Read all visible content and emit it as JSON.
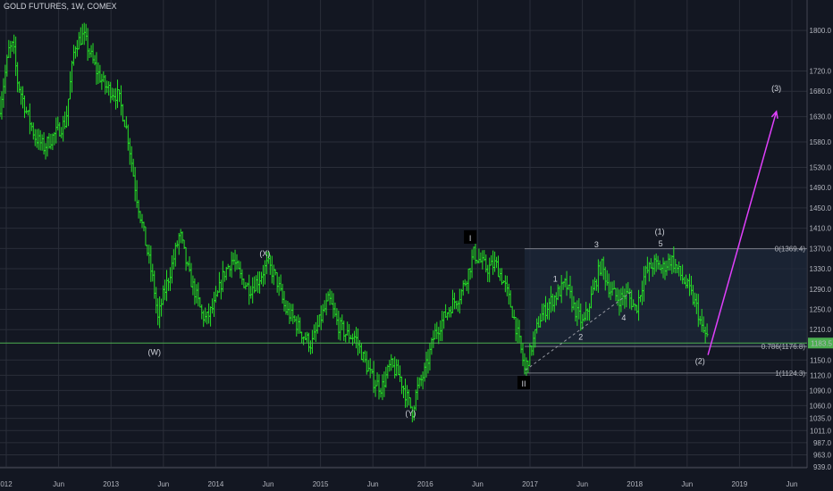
{
  "chart_data": {
    "type": "ohlc",
    "title": "GOLD FUTURES, 1W, COMEX",
    "ylim": [
      937.5,
      1860
    ],
    "y_ticks": [
      1880.0,
      1800.0,
      1720.0,
      1680.0,
      1630.0,
      1580.0,
      1530.0,
      1490.0,
      1450.0,
      1410.0,
      1370.0,
      1330.0,
      1290.0,
      1250.0,
      1210.0,
      1150.0,
      1120.0,
      1090.0,
      1060.0,
      1035.0,
      1011.0,
      987.0,
      963.0,
      939.0
    ],
    "x_ticks": [
      "012",
      "Jun",
      "2013",
      "Jun",
      "2014",
      "Jun",
      "2015",
      "Jun",
      "2016",
      "Jun",
      "2017",
      "Jun",
      "2018",
      "Jun",
      "2019",
      "Jun"
    ],
    "price_series": [
      {
        "t": 0.0,
        "v": 1650
      },
      {
        "t": 1.0,
        "v": 1760
      },
      {
        "t": 1.5,
        "v": 1770
      },
      {
        "t": 2.0,
        "v": 1700
      },
      {
        "t": 3.0,
        "v": 1640
      },
      {
        "t": 4.0,
        "v": 1590
      },
      {
        "t": 5.0,
        "v": 1570
      },
      {
        "t": 6.5,
        "v": 1600
      },
      {
        "t": 7.5,
        "v": 1620
      },
      {
        "t": 8.5,
        "v": 1770
      },
      {
        "t": 9.5,
        "v": 1790
      },
      {
        "t": 11.0,
        "v": 1720
      },
      {
        "t": 12.0,
        "v": 1690
      },
      {
        "t": 13.5,
        "v": 1670
      },
      {
        "t": 14.5,
        "v": 1600
      },
      {
        "t": 15.5,
        "v": 1480
      },
      {
        "t": 16.5,
        "v": 1390
      },
      {
        "t": 17.5,
        "v": 1300
      },
      {
        "t": 18.0,
        "v": 1230
      },
      {
        "t": 18.5,
        "v": 1270
      },
      {
        "t": 19.5,
        "v": 1330
      },
      {
        "t": 20.5,
        "v": 1400
      },
      {
        "t": 21.5,
        "v": 1320
      },
      {
        "t": 22.5,
        "v": 1270
      },
      {
        "t": 23.0,
        "v": 1240
      },
      {
        "t": 23.5,
        "v": 1230
      },
      {
        "t": 24.5,
        "v": 1260
      },
      {
        "t": 25.5,
        "v": 1320
      },
      {
        "t": 26.5,
        "v": 1350
      },
      {
        "t": 27.5,
        "v": 1310
      },
      {
        "t": 28.5,
        "v": 1290
      },
      {
        "t": 29.5,
        "v": 1310
      },
      {
        "t": 30.5,
        "v": 1340
      },
      {
        "t": 31.5,
        "v": 1310
      },
      {
        "t": 32.5,
        "v": 1250
      },
      {
        "t": 33.5,
        "v": 1230
      },
      {
        "t": 34.5,
        "v": 1200
      },
      {
        "t": 35.5,
        "v": 1180
      },
      {
        "t": 36.5,
        "v": 1230
      },
      {
        "t": 37.5,
        "v": 1270
      },
      {
        "t": 38.5,
        "v": 1220
      },
      {
        "t": 39.5,
        "v": 1200
      },
      {
        "t": 40.5,
        "v": 1195
      },
      {
        "t": 41.5,
        "v": 1150
      },
      {
        "t": 42.5,
        "v": 1110
      },
      {
        "t": 43.5,
        "v": 1095
      },
      {
        "t": 44.5,
        "v": 1140
      },
      {
        "t": 45.5,
        "v": 1120
      },
      {
        "t": 46.5,
        "v": 1070
      },
      {
        "t": 47.0,
        "v": 1050
      },
      {
        "t": 47.5,
        "v": 1090
      },
      {
        "t": 48.5,
        "v": 1130
      },
      {
        "t": 49.5,
        "v": 1200
      },
      {
        "t": 50.5,
        "v": 1230
      },
      {
        "t": 51.5,
        "v": 1260
      },
      {
        "t": 52.5,
        "v": 1280
      },
      {
        "t": 53.5,
        "v": 1330
      },
      {
        "t": 54.0,
        "v": 1360
      },
      {
        "t": 54.5,
        "v": 1350
      },
      {
        "t": 55.5,
        "v": 1330
      },
      {
        "t": 56.5,
        "v": 1340
      },
      {
        "t": 57.5,
        "v": 1300
      },
      {
        "t": 58.5,
        "v": 1240
      },
      {
        "t": 59.5,
        "v": 1160
      },
      {
        "t": 59.8,
        "v": 1130
      },
      {
        "t": 60.5,
        "v": 1170
      },
      {
        "t": 61.5,
        "v": 1230
      },
      {
        "t": 62.5,
        "v": 1260
      },
      {
        "t": 63.5,
        "v": 1280
      },
      {
        "t": 64.5,
        "v": 1300
      },
      {
        "t": 65.5,
        "v": 1250
      },
      {
        "t": 66.5,
        "v": 1220
      },
      {
        "t": 67.5,
        "v": 1280
      },
      {
        "t": 68.5,
        "v": 1340
      },
      {
        "t": 69.5,
        "v": 1290
      },
      {
        "t": 70.5,
        "v": 1270
      },
      {
        "t": 71.5,
        "v": 1280
      },
      {
        "t": 72.5,
        "v": 1250
      },
      {
        "t": 73.5,
        "v": 1320
      },
      {
        "t": 74.5,
        "v": 1340
      },
      {
        "t": 75.5,
        "v": 1330
      },
      {
        "t": 76.5,
        "v": 1350
      },
      {
        "t": 77.5,
        "v": 1320
      },
      {
        "t": 78.5,
        "v": 1290
      },
      {
        "t": 79.5,
        "v": 1250
      },
      {
        "t": 80.0,
        "v": 1210
      },
      {
        "t": 80.6,
        "v": 1195
      }
    ],
    "annotations": [
      {
        "text": "(W)",
        "x": 17.6,
        "y": 1160,
        "color": "#d7b28c"
      },
      {
        "text": "(X)",
        "x": 30.2,
        "y": 1355,
        "color": "#d7b28c"
      },
      {
        "text": "(Y)",
        "x": 46.8,
        "y": 1040,
        "color": "#d7b28c"
      },
      {
        "text": "I",
        "x": 53.6,
        "y": 1390,
        "color": "#ffffff",
        "boxed": true
      },
      {
        "text": "II",
        "x": 59.7,
        "y": 1103,
        "color": "#ffffff",
        "boxed": true
      },
      {
        "text": "1",
        "x": 63.3,
        "y": 1305,
        "color": "#c0ffd0"
      },
      {
        "text": "2",
        "x": 66.2,
        "y": 1190,
        "color": "#c0ffd0"
      },
      {
        "text": "3",
        "x": 68.0,
        "y": 1372,
        "color": "#c0ffd0"
      },
      {
        "text": "4",
        "x": 71.1,
        "y": 1228,
        "color": "#c0ffd0"
      },
      {
        "text": "5",
        "x": 75.3,
        "y": 1374,
        "color": "#c0ffd0"
      },
      {
        "text": "(1)",
        "x": 75.2,
        "y": 1398,
        "color": "#4caf50"
      },
      {
        "text": "(2)",
        "x": 79.8,
        "y": 1143,
        "color": "#4caf50"
      },
      {
        "text": "(3)",
        "x": 88.5,
        "y": 1680,
        "color": "#4caf50"
      }
    ],
    "fib_levels": [
      {
        "label": "0(1369.4)",
        "value": 1369.4
      },
      {
        "label": "0.786(1176.8)",
        "value": 1176.8
      },
      {
        "label": "1(1124.3)",
        "value": 1124.3
      }
    ],
    "horizontal_line": {
      "value": 1183.5,
      "label": "1183.5",
      "color": "#4caf50"
    },
    "projection": {
      "from_t": 80.7,
      "from_v": 1160,
      "to_t": 88.5,
      "to_v": 1640,
      "color": "#e040fb"
    },
    "wave_dashed": {
      "from_t": 59.9,
      "from_v": 1130,
      "to_t": 72.0,
      "to_v": 1285
    }
  }
}
